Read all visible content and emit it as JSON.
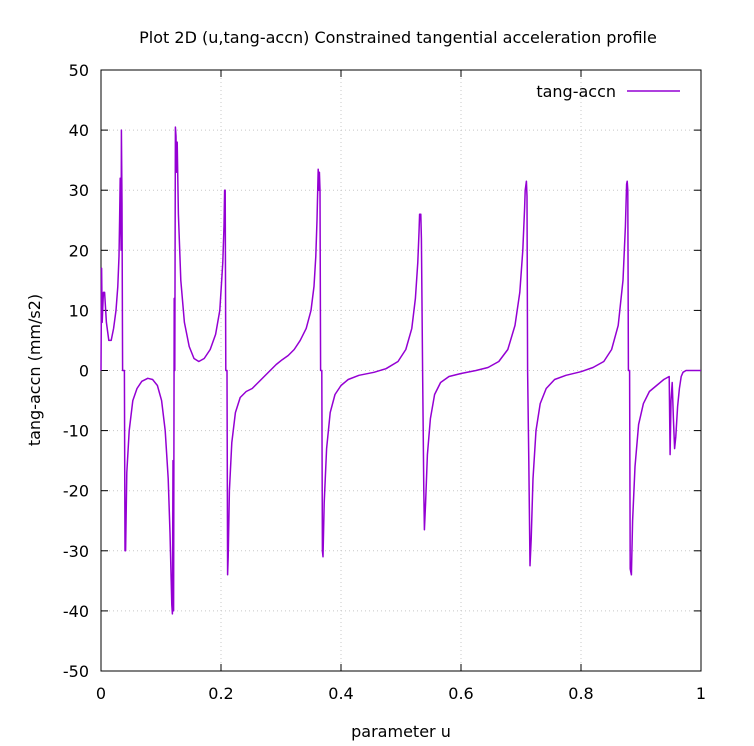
{
  "chart_data": {
    "type": "line",
    "title": "Plot 2D (u,tang-accn) Constrained tangential acceleration profile",
    "xlabel": "parameter u",
    "ylabel": "tang-accn (mm/s2)",
    "xlim": [
      0,
      1
    ],
    "ylim": [
      -50,
      50
    ],
    "x_ticks": [
      0,
      0.2,
      0.4,
      0.6,
      0.8,
      1
    ],
    "x_tick_labels": [
      "0",
      "0.2",
      "0.4",
      "0.6",
      "0.8",
      "1"
    ],
    "y_ticks": [
      -50,
      -40,
      -30,
      -20,
      -10,
      0,
      10,
      20,
      30,
      40,
      50
    ],
    "y_tick_labels": [
      "-50",
      "-40",
      "-30",
      "-20",
      "-10",
      "0",
      "10",
      "20",
      "30",
      "40",
      "50"
    ],
    "grid": true,
    "legend_position": "top-right",
    "series": [
      {
        "name": "tang-accn",
        "color": "#9400d3",
        "points": [
          [
            0.0,
            0
          ],
          [
            0.001,
            17
          ],
          [
            0.002,
            8
          ],
          [
            0.004,
            13
          ],
          [
            0.006,
            13
          ],
          [
            0.009,
            8
          ],
          [
            0.013,
            5
          ],
          [
            0.017,
            5
          ],
          [
            0.021,
            7
          ],
          [
            0.025,
            10
          ],
          [
            0.028,
            14
          ],
          [
            0.03,
            19
          ],
          [
            0.031,
            25
          ],
          [
            0.032,
            32
          ],
          [
            0.0335,
            20
          ],
          [
            0.034,
            40
          ],
          [
            0.035,
            28
          ],
          [
            0.036,
            0
          ],
          [
            0.039,
            0
          ],
          [
            0.04,
            -30
          ],
          [
            0.041,
            -30
          ],
          [
            0.043,
            -17
          ],
          [
            0.047,
            -10
          ],
          [
            0.053,
            -5
          ],
          [
            0.06,
            -3
          ],
          [
            0.068,
            -1.8
          ],
          [
            0.078,
            -1.3
          ],
          [
            0.086,
            -1.5
          ],
          [
            0.094,
            -2.5
          ],
          [
            0.101,
            -5
          ],
          [
            0.107,
            -10
          ],
          [
            0.112,
            -18
          ],
          [
            0.115,
            -27
          ],
          [
            0.117,
            -35
          ],
          [
            0.118,
            -39
          ],
          [
            0.119,
            -40.5
          ],
          [
            0.12,
            -15
          ],
          [
            0.121,
            -40
          ],
          [
            0.122,
            12
          ],
          [
            0.123,
            0
          ],
          [
            0.124,
            40.5
          ],
          [
            0.125,
            39
          ],
          [
            0.126,
            33
          ],
          [
            0.127,
            38
          ],
          [
            0.129,
            26
          ],
          [
            0.133,
            15
          ],
          [
            0.139,
            8
          ],
          [
            0.147,
            4
          ],
          [
            0.155,
            2
          ],
          [
            0.163,
            1.5
          ],
          [
            0.172,
            2
          ],
          [
            0.182,
            3.5
          ],
          [
            0.191,
            6
          ],
          [
            0.198,
            10
          ],
          [
            0.203,
            18
          ],
          [
            0.205,
            24
          ],
          [
            0.206,
            30
          ],
          [
            0.207,
            30
          ],
          [
            0.208,
            0
          ],
          [
            0.21,
            0
          ],
          [
            0.211,
            -34
          ],
          [
            0.212,
            -31
          ],
          [
            0.214,
            -20
          ],
          [
            0.218,
            -12
          ],
          [
            0.224,
            -7
          ],
          [
            0.232,
            -4.5
          ],
          [
            0.242,
            -3.5
          ],
          [
            0.252,
            -3
          ],
          [
            0.262,
            -2
          ],
          [
            0.272,
            -1
          ],
          [
            0.282,
            0
          ],
          [
            0.292,
            1
          ],
          [
            0.302,
            1.8
          ],
          [
            0.312,
            2.5
          ],
          [
            0.322,
            3.5
          ],
          [
            0.332,
            5
          ],
          [
            0.342,
            7
          ],
          [
            0.35,
            10
          ],
          [
            0.355,
            14
          ],
          [
            0.358,
            19
          ],
          [
            0.36,
            25
          ],
          [
            0.362,
            33.5
          ],
          [
            0.363,
            30
          ],
          [
            0.364,
            33
          ],
          [
            0.365,
            30
          ],
          [
            0.366,
            0
          ],
          [
            0.368,
            0
          ],
          [
            0.369,
            -30
          ],
          [
            0.37,
            -31
          ],
          [
            0.372,
            -22
          ],
          [
            0.376,
            -13
          ],
          [
            0.382,
            -7
          ],
          [
            0.39,
            -4
          ],
          [
            0.4,
            -2.5
          ],
          [
            0.412,
            -1.5
          ],
          [
            0.43,
            -0.8
          ],
          [
            0.455,
            -0.3
          ],
          [
            0.475,
            0.3
          ],
          [
            0.495,
            1.5
          ],
          [
            0.508,
            3.5
          ],
          [
            0.518,
            7
          ],
          [
            0.524,
            12
          ],
          [
            0.528,
            18
          ],
          [
            0.53,
            23
          ],
          [
            0.531,
            26
          ],
          [
            0.533,
            26
          ],
          [
            0.534,
            22
          ],
          [
            0.536,
            0
          ],
          [
            0.538,
            -20
          ],
          [
            0.539,
            -26.5
          ],
          [
            0.541,
            -22
          ],
          [
            0.544,
            -14
          ],
          [
            0.549,
            -8
          ],
          [
            0.556,
            -4
          ],
          [
            0.566,
            -2
          ],
          [
            0.58,
            -1
          ],
          [
            0.6,
            -0.5
          ],
          [
            0.625,
            0
          ],
          [
            0.645,
            0.5
          ],
          [
            0.663,
            1.5
          ],
          [
            0.678,
            3.5
          ],
          [
            0.69,
            7.5
          ],
          [
            0.698,
            13
          ],
          [
            0.703,
            20
          ],
          [
            0.706,
            27
          ],
          [
            0.707,
            30
          ],
          [
            0.709,
            31.5
          ],
          [
            0.71,
            29
          ],
          [
            0.711,
            0
          ],
          [
            0.713,
            -15
          ],
          [
            0.715,
            -32.5
          ],
          [
            0.717,
            -28
          ],
          [
            0.72,
            -18
          ],
          [
            0.725,
            -10
          ],
          [
            0.732,
            -5.5
          ],
          [
            0.742,
            -3
          ],
          [
            0.756,
            -1.5
          ],
          [
            0.775,
            -0.8
          ],
          [
            0.8,
            -0.2
          ],
          [
            0.82,
            0.5
          ],
          [
            0.838,
            1.5
          ],
          [
            0.851,
            3.5
          ],
          [
            0.862,
            7.5
          ],
          [
            0.87,
            15
          ],
          [
            0.874,
            24
          ],
          [
            0.876,
            31
          ],
          [
            0.877,
            31.5
          ],
          [
            0.878,
            30
          ],
          [
            0.879,
            0
          ],
          [
            0.881,
            0
          ],
          [
            0.882,
            -33
          ],
          [
            0.884,
            -34
          ],
          [
            0.886,
            -25
          ],
          [
            0.89,
            -16
          ],
          [
            0.896,
            -9
          ],
          [
            0.904,
            -5.5
          ],
          [
            0.914,
            -3.5
          ],
          [
            0.926,
            -2.5
          ],
          [
            0.938,
            -1.5
          ],
          [
            0.947,
            -1
          ],
          [
            0.9485,
            -14
          ],
          [
            0.95,
            -5
          ],
          [
            0.952,
            -2
          ],
          [
            0.954,
            -8
          ],
          [
            0.956,
            -13
          ],
          [
            0.958,
            -11
          ],
          [
            0.961,
            -6
          ],
          [
            0.964,
            -3
          ],
          [
            0.967,
            -1
          ],
          [
            0.97,
            -0.3
          ],
          [
            0.975,
            0
          ],
          [
            1.0,
            0
          ]
        ]
      }
    ]
  }
}
